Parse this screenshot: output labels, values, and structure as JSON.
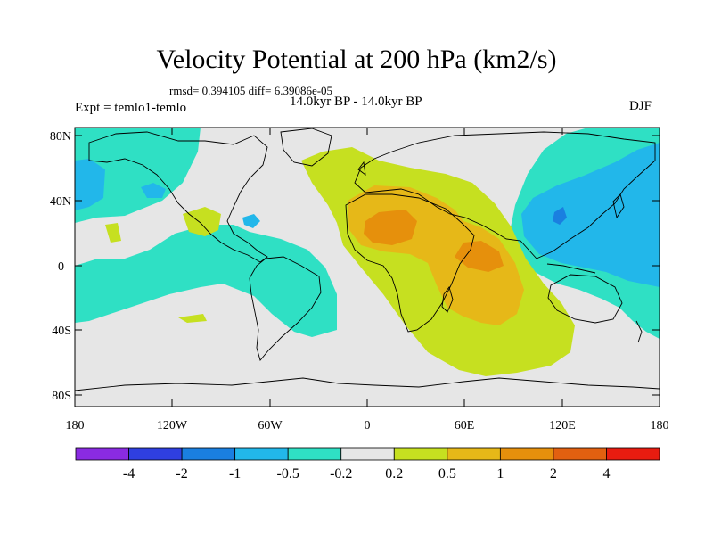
{
  "title": "Velocity Potential at 200 hPa (km2/s)",
  "stats_text": "rmsd= 0.394105 diff= 6.39086e-05",
  "period_text": "14.0kyr BP - 14.0kyr BP",
  "experiment_text": "Expt = temlo1-temlo",
  "season": "DJF",
  "axes": {
    "x_ticks": [
      "180",
      "120W",
      "60W",
      "0",
      "60E",
      "120E",
      "180"
    ],
    "y_ticks": [
      "80N",
      "40N",
      "0",
      "40S",
      "80S"
    ]
  },
  "colorbar": {
    "colors": [
      "#8a2be2",
      "#2f3fe0",
      "#1a7fe0",
      "#22b7ea",
      "#2fe0c4",
      "#e6e6e6",
      "#c6e020",
      "#e6b818",
      "#e6900c",
      "#e26010",
      "#e81c10"
    ],
    "labels": [
      "-4",
      "-2",
      "-1",
      "-0.5",
      "-0.2",
      "0.2",
      "0.5",
      "1",
      "2",
      "4"
    ]
  },
  "palette": {
    "background": "#e6e6e6",
    "cyan": "#2fe0c4",
    "light_blue": "#22b7ea",
    "mid_blue": "#1a7fe0",
    "lime": "#c6e020",
    "gold": "#e6b818",
    "orange": "#e6900c"
  }
}
